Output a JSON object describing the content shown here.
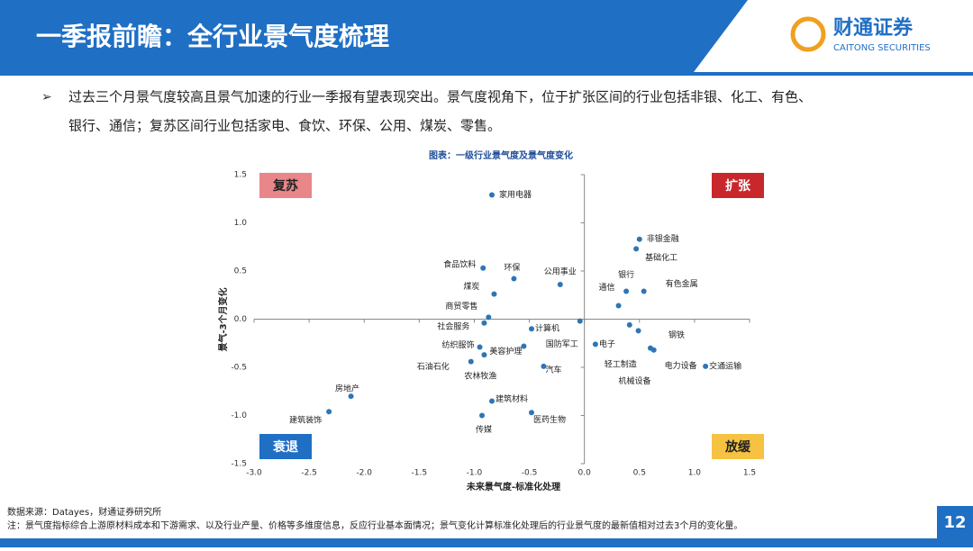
{
  "header": {
    "title": "一季报前瞻：全行业景气度梳理",
    "logo_name": "财通证券",
    "logo_subtitle": "CAITONG SECURITIES"
  },
  "bullet": {
    "line1": "过去三个月景气度较高且景气加速的行业一季报有望表现突出。景气度视角下，位于扩张区间的行业包括非银、化工、有色、",
    "line2": "银行、通信；复苏区间行业包括家电、食饮、环保、公用、煤炭、零售。"
  },
  "chart_data": {
    "type": "scatter",
    "title": "图表：一级行业景气度及景气度变化",
    "x_label": "未来景气度-标准化处理",
    "y_label": "景气-3个月变化",
    "color": "#2e75b6",
    "categories": [
      "家用电器",
      "非银金融",
      "基础化工",
      "食品饮料",
      "环保",
      "公用事业",
      "银行",
      "有色金属",
      "煤炭",
      "通信",
      "商贸零售",
      "社会服务",
      "计算机",
      "国防军工",
      "电子",
      "轻工制造",
      "机械设备",
      "钢铁",
      "纺织服饰",
      "美容护理",
      "农林牧渔",
      "石油石化",
      "电力设备",
      "交通运输",
      "汽车",
      "建筑材料",
      "房地产",
      "建筑装饰",
      "医药生物",
      "传媒"
    ],
    "x": [
      -0.84,
      0.5,
      0.47,
      -0.92,
      -0.64,
      -0.22,
      0.38,
      0.54,
      -0.82,
      0.31,
      -0.87,
      -0.91,
      -0.48,
      -0.04,
      0.1,
      0.41,
      0.49,
      0.6,
      -0.95,
      -0.55,
      -0.91,
      -1.03,
      0.63,
      1.1,
      -0.37,
      -0.84,
      -2.12,
      -2.32,
      -0.48,
      -0.93
    ],
    "values": [
      1.29,
      0.83,
      0.73,
      0.53,
      0.42,
      0.36,
      0.29,
      0.29,
      0.26,
      0.14,
      0.02,
      -0.04,
      -0.1,
      -0.02,
      -0.26,
      -0.06,
      -0.12,
      -0.3,
      -0.29,
      -0.28,
      -0.37,
      -0.44,
      -0.32,
      -0.49,
      -0.49,
      -0.85,
      -0.8,
      -0.96,
      -0.97,
      -1.0
    ],
    "xlim": [
      -3.0,
      1.5
    ],
    "xticks": [
      {
        "value": -3,
        "label": "-3.0"
      },
      -2.5,
      {
        "value": -2,
        "label": "-2.0"
      },
      -1.5,
      {
        "value": -1,
        "label": "-1.0"
      },
      -0.5,
      {
        "value": 0,
        "label": "0.0"
      },
      0.5,
      {
        "value": 1,
        "label": "1.0"
      },
      1.5
    ],
    "ylim": [
      -1.5,
      1.5
    ],
    "yticks": [
      1.5,
      {
        "value": 1,
        "label": "1.0"
      },
      0.5,
      {
        "value": 0,
        "label": "0.0"
      },
      -0.5,
      {
        "value": -1,
        "label": "-1.0"
      },
      -1.5
    ],
    "annotations": [
      "复苏",
      "扩张",
      "衰退",
      "放缓"
    ]
  },
  "footer": {
    "source": "数据来源：Datayes，财通证券研究所",
    "note": "注：景气度指标综合上游原材料成本和下游需求、以及行业产量、价格等多维度信息，反应行业基本面情况；景气变化计算标准化处理后的行业景气度的最新值相对过去3个月的变化量。",
    "page": "12"
  }
}
